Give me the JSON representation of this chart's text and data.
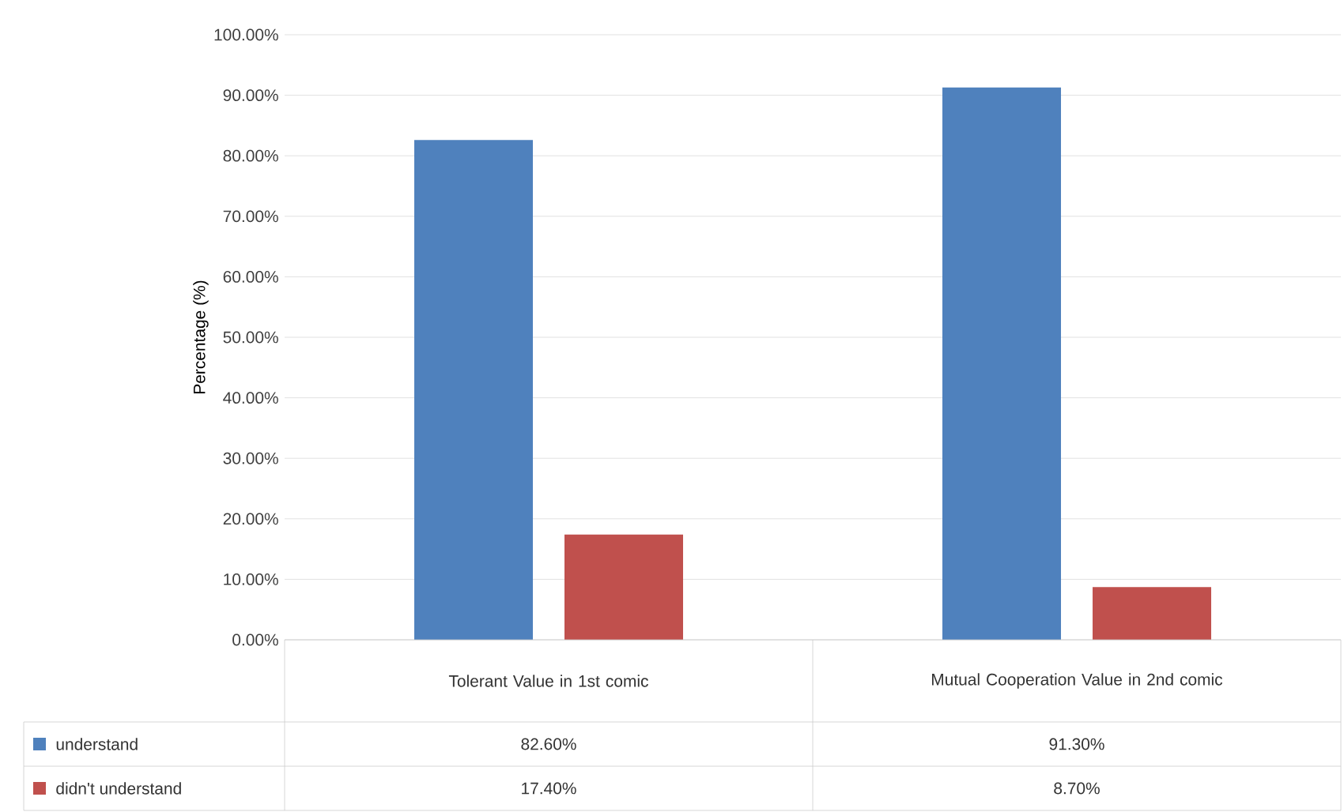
{
  "chart_data": {
    "type": "bar",
    "ylabel": "Percentage (%)",
    "categories": [
      "Tolerant Value in 1st comic",
      "Mutual Cooperation Value in 2nd comic"
    ],
    "series": [
      {
        "name": "understand",
        "color": "#4f81bd",
        "values": [
          82.6,
          91.3
        ],
        "value_labels": [
          "82.60%",
          "91.30%"
        ]
      },
      {
        "name": "didn't understand",
        "color": "#c0504d",
        "values": [
          17.4,
          8.7
        ],
        "value_labels": [
          "17.40%",
          "8.70%"
        ]
      }
    ],
    "ylim": [
      0,
      100
    ],
    "yticks": [
      {
        "value": 0,
        "label": "0.00%"
      },
      {
        "value": 10,
        "label": "10.00%"
      },
      {
        "value": 20,
        "label": "20.00%"
      },
      {
        "value": 30,
        "label": "30.00%"
      },
      {
        "value": 40,
        "label": "40.00%"
      },
      {
        "value": 50,
        "label": "50.00%"
      },
      {
        "value": 60,
        "label": "60.00%"
      },
      {
        "value": 70,
        "label": "70.00%"
      },
      {
        "value": 80,
        "label": "80.00%"
      },
      {
        "value": 90,
        "label": "90.00%"
      },
      {
        "value": 100,
        "label": "100.00%"
      }
    ],
    "grid": "y",
    "legend": "bottom"
  }
}
